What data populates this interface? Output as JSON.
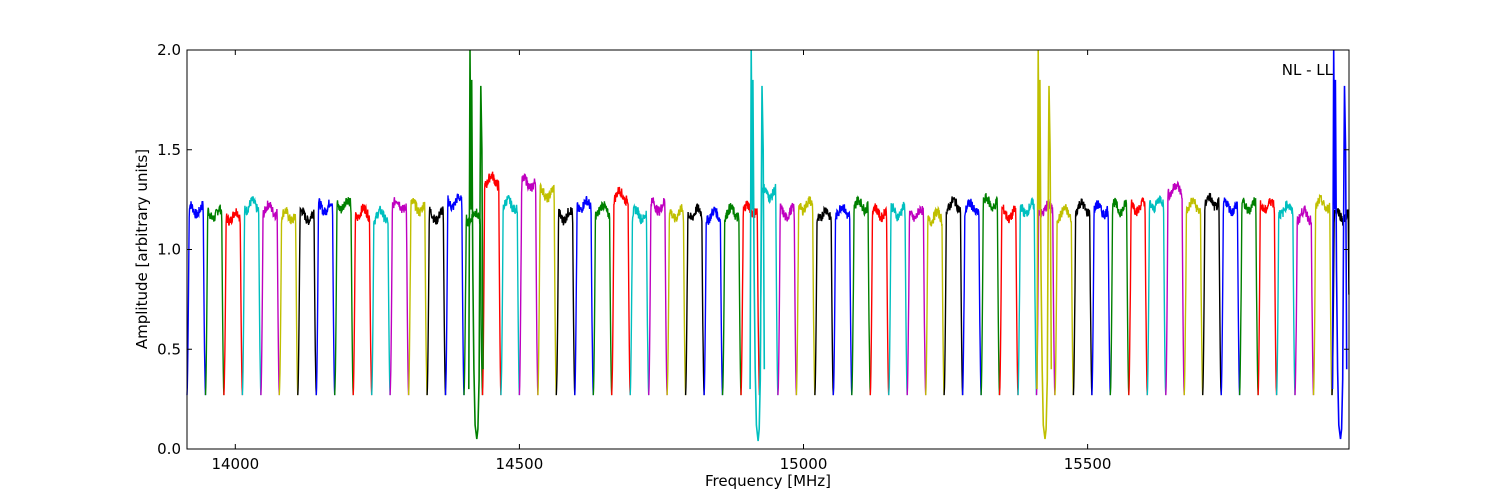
{
  "chart_data": {
    "type": "line",
    "title": "",
    "xlabel": "Frequency [MHz]",
    "ylabel": "Amplitude [arbitrary units]",
    "xlim": [
      13915,
      15960
    ],
    "ylim": [
      0.0,
      2.0
    ],
    "xticks": [
      14000,
      14500,
      15000,
      15500
    ],
    "yticks": [
      0.0,
      0.5,
      1.0,
      1.5,
      2.0
    ],
    "xtick_labels": [
      "14000",
      "14500",
      "15000",
      "15500"
    ],
    "ytick_labels": [
      "0.0",
      "0.5",
      "1.0",
      "1.5",
      "2.0"
    ],
    "annotation": "NL - LL",
    "grid": false,
    "color_cycle": [
      "#0000ff",
      "#008000",
      "#ff0000",
      "#00bfbf",
      "#bf00bf",
      "#bfbf00",
      "#000000"
    ],
    "subband_width_mhz": 32.5,
    "subband_count": 63,
    "subband_start_mhz": 13915,
    "subband_peak_level": 1.2,
    "subband_trough_level": 0.27,
    "notches": [
      {
        "x": 14425,
        "min": 0.05,
        "max": 2.0,
        "color": "#008000"
      },
      {
        "x": 14920,
        "min": 0.04,
        "max": 2.0,
        "color": "#00bfbf"
      },
      {
        "x": 15425,
        "min": 0.05,
        "max": 2.0,
        "color": "#bfbf00"
      },
      {
        "x": 15945,
        "min": 0.05,
        "max": 2.0,
        "color": "#0000ff"
      }
    ]
  }
}
